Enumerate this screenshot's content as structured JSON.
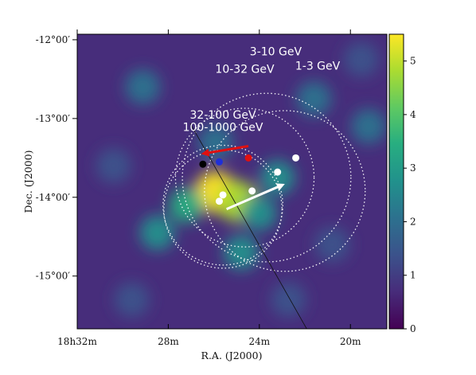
{
  "chart_data": {
    "type": "heatmap",
    "title": "",
    "xlabel": "R.A. (J2000)",
    "ylabel": "Dec. (J2000)",
    "x_axis": {
      "unit": "RA minutes",
      "range": [
        278.0,
        277.15
      ],
      "ticks": [
        {
          "value": 278.0,
          "label": "18h32m"
        },
        {
          "value": 277.75,
          "label": "28m"
        },
        {
          "value": 277.5,
          "label": "24m"
        },
        {
          "value": 277.25,
          "label": "20m"
        }
      ]
    },
    "y_axis": {
      "unit": "deg",
      "range": [
        -15.67,
        -11.93
      ],
      "ticks": [
        {
          "value": -12.0,
          "label": "-12°00′"
        },
        {
          "value": -13.0,
          "label": "-13°00′"
        },
        {
          "value": -14.0,
          "label": "-14°00′"
        },
        {
          "value": -15.0,
          "label": "-15°00′"
        }
      ]
    },
    "colorbar": {
      "min": 0,
      "max": 5.5,
      "ticks": [
        {
          "value": 0,
          "label": "0"
        },
        {
          "value": 1,
          "label": "1"
        },
        {
          "value": 2,
          "label": "2"
        },
        {
          "value": 3,
          "label": "3"
        },
        {
          "value": 4,
          "label": "4"
        },
        {
          "value": 5,
          "label": "5"
        }
      ],
      "colormap": "viridis"
    },
    "hotspots": [
      {
        "ra": 277.62,
        "dec": -13.93,
        "value": 5.3
      },
      {
        "ra": 277.56,
        "dec": -14.05,
        "value": 4.6
      },
      {
        "ra": 277.7,
        "dec": -14.1,
        "value": 3.6
      },
      {
        "ra": 277.5,
        "dec": -14.2,
        "value": 3.0
      },
      {
        "ra": 277.55,
        "dec": -14.7,
        "value": 2.8
      },
      {
        "ra": 277.78,
        "dec": -14.45,
        "value": 2.9
      },
      {
        "ra": 277.45,
        "dec": -13.75,
        "value": 2.5
      },
      {
        "ra": 277.62,
        "dec": -13.3,
        "value": 2.3
      },
      {
        "ra": 277.35,
        "dec": -12.75,
        "value": 2.0
      },
      {
        "ra": 277.2,
        "dec": -13.1,
        "value": 1.9
      },
      {
        "ra": 277.82,
        "dec": -12.6,
        "value": 1.8
      },
      {
        "ra": 277.9,
        "dec": -13.6,
        "value": 1.6
      },
      {
        "ra": 277.3,
        "dec": -14.6,
        "value": 1.6
      },
      {
        "ra": 277.85,
        "dec": -15.3,
        "value": 1.5
      },
      {
        "ra": 277.42,
        "dec": -15.3,
        "value": 1.4
      },
      {
        "ra": 277.22,
        "dec": -12.25,
        "value": 1.6
      }
    ],
    "circles": [
      {
        "label": "3-10 GeV",
        "ra": 277.48,
        "dec": -13.75,
        "radius_deg": 1.07
      },
      {
        "label": "10-32 GeV",
        "ra": 277.54,
        "dec": -13.75,
        "radius_deg": 0.88
      },
      {
        "label": "1-3 GeV",
        "ra": 277.43,
        "dec": -13.92,
        "radius_deg": 1.02
      },
      {
        "label": "32-100 GeV",
        "ra": 277.6,
        "dec": -14.1,
        "radius_deg": 0.76
      },
      {
        "label": "100-1000 GeV",
        "ra": 277.6,
        "dec": -14.15,
        "radius_deg": 0.75
      }
    ],
    "circle_labels": [
      {
        "text": "3-10 GeV",
        "ra": 277.455,
        "dec": -12.2
      },
      {
        "text": "10-32 GeV",
        "ra": 277.54,
        "dec": -12.42
      },
      {
        "text": "1-3 GeV",
        "ra": 277.34,
        "dec": -12.38
      },
      {
        "text": "32-100 GeV",
        "ra": 277.6,
        "dec": -13.0
      },
      {
        "text": "100-1000 GeV",
        "ra": 277.6,
        "dec": -13.16
      }
    ],
    "markers": [
      {
        "color": "#000000",
        "ra": 277.655,
        "dec": -13.58
      },
      {
        "color": "#1f2fd8",
        "ra": 277.61,
        "dec": -13.55
      },
      {
        "color": "#e01010",
        "ra": 277.53,
        "dec": -13.5
      },
      {
        "color": "#ffffff",
        "ra": 277.4,
        "dec": -13.5
      },
      {
        "color": "#ffffff",
        "ra": 277.45,
        "dec": -13.68
      },
      {
        "color": "#ffffff",
        "ra": 277.52,
        "dec": -13.92
      },
      {
        "color": "#ffffff",
        "ra": 277.6,
        "dec": -13.97
      },
      {
        "color": "#ffffff",
        "ra": 277.61,
        "dec": -14.05
      }
    ],
    "arrows": [
      {
        "color": "#e01010",
        "from": {
          "ra": 277.53,
          "dec": -13.35
        },
        "to": {
          "ra": 277.66,
          "dec": -13.45
        }
      },
      {
        "color": "#ffffff",
        "from": {
          "ra": 277.59,
          "dec": -14.15
        },
        "to": {
          "ra": 277.43,
          "dec": -13.83
        }
      }
    ],
    "line": {
      "color": "#111111",
      "from": {
        "ra": 277.69,
        "dec": -13.06
      },
      "to": {
        "ra": 277.37,
        "dec": -15.67
      }
    },
    "grid": false
  }
}
